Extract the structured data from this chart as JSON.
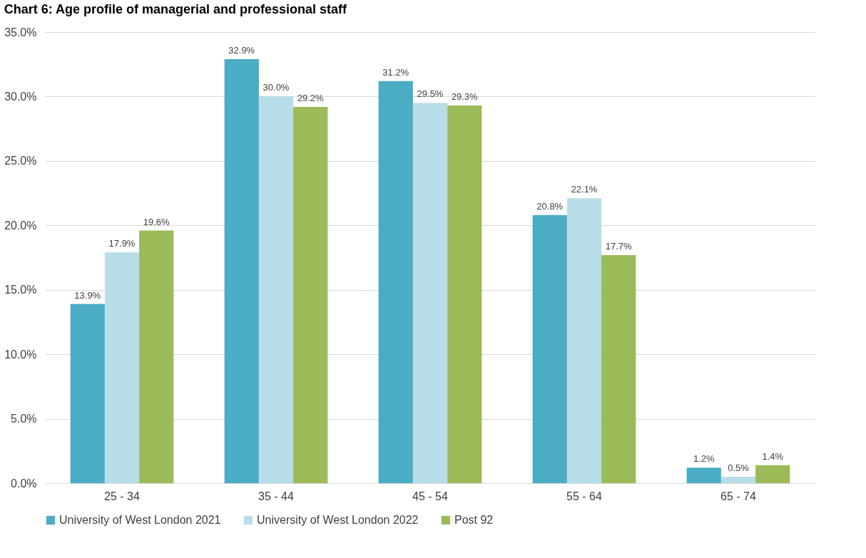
{
  "chart_data": {
    "type": "bar",
    "title": "Chart 6: Age profile of managerial and professional staff",
    "categories": [
      "25 - 34",
      "35 - 44",
      "45 - 54",
      "55 - 64",
      "65 - 74"
    ],
    "series": [
      {
        "name": "University of West London 2021",
        "color": "#4bacc6",
        "values": [
          13.9,
          32.9,
          31.2,
          20.8,
          1.2
        ],
        "value_labels": [
          "13.9%",
          "32.9%",
          "31.2%",
          "20.8%",
          "1.2%"
        ]
      },
      {
        "name": "University of West London 2022",
        "color": "#b7dde8",
        "values": [
          17.9,
          30.0,
          29.5,
          22.1,
          0.5
        ],
        "value_labels": [
          "17.9%",
          "30.0%",
          "29.5%",
          "22.1%",
          "0.5%"
        ]
      },
      {
        "name": "Post 92",
        "color": "#9bbb59",
        "values": [
          19.6,
          29.2,
          29.3,
          17.7,
          1.4
        ],
        "value_labels": [
          "19.6%",
          "29.2%",
          "29.3%",
          "17.7%",
          "1.4%"
        ]
      }
    ],
    "ylim": [
      0,
      35
    ],
    "yticks": [
      {
        "value": 0,
        "label": "0.0%"
      },
      {
        "value": 5,
        "label": "5.0%"
      },
      {
        "value": 10,
        "label": "10.0%"
      },
      {
        "value": 15,
        "label": "15.0%"
      },
      {
        "value": 20,
        "label": "20.0%"
      },
      {
        "value": 25,
        "label": "25.0%"
      },
      {
        "value": 30,
        "label": "30.0%"
      },
      {
        "value": 35,
        "label": "35.0%"
      }
    ],
    "grid": "y",
    "legend": "bottom"
  }
}
